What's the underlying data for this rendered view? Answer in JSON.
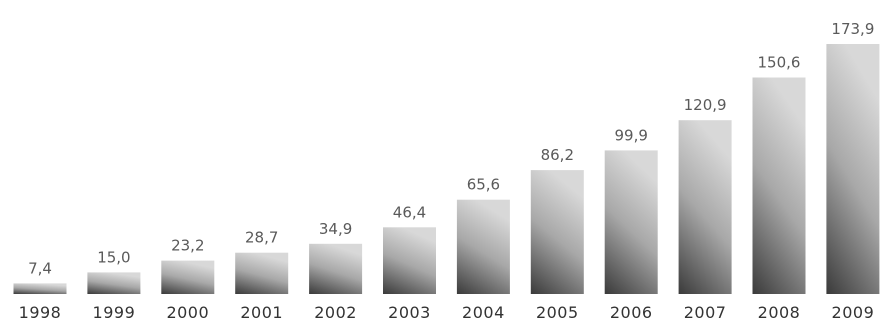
{
  "chart_data": {
    "type": "bar",
    "categories": [
      "1998",
      "1999",
      "2000",
      "2001",
      "2002",
      "2003",
      "2004",
      "2005",
      "2006",
      "2007",
      "2008",
      "2009"
    ],
    "values": [
      7.4,
      15.0,
      23.2,
      28.7,
      34.9,
      46.4,
      65.6,
      86.2,
      99.9,
      120.9,
      150.6,
      173.9
    ],
    "value_labels": [
      "7,4",
      "15,0",
      "23,2",
      "28,7",
      "34,9",
      "46,4",
      "65,6",
      "86,2",
      "99,9",
      "120,9",
      "150,6",
      "173,9"
    ],
    "title": "",
    "xlabel": "",
    "ylabel": "",
    "ylim": [
      0,
      173.9
    ],
    "grid": false,
    "legend": "none",
    "colors": {
      "bar_dark": "#3a3a3a",
      "bar_light": "#d6d6d6",
      "value_text": "#5a5a5a",
      "tick_text": "#333333",
      "background": "#ffffff"
    }
  }
}
